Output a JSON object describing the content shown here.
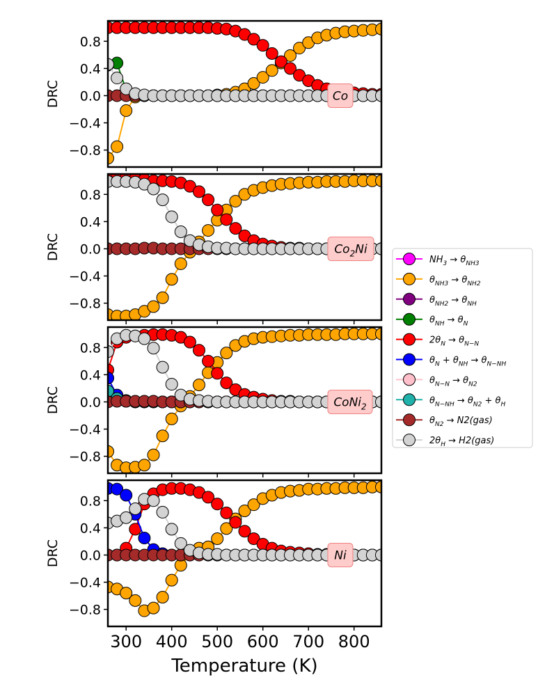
{
  "chart_data": {
    "type": "line",
    "xlabel": "Temperature (K)",
    "ylabel": "DRC",
    "xlim": [
      260,
      860
    ],
    "ylim": [
      -1.05,
      1.1
    ],
    "xticks": [
      300,
      400,
      500,
      600,
      700,
      800
    ],
    "yticks": [
      -0.8,
      -0.4,
      0.0,
      0.4,
      0.8
    ],
    "xtick_labels": [
      "300",
      "400",
      "500",
      "600",
      "700",
      "800"
    ],
    "ytick_labels": [
      "−0.8",
      "−0.4",
      "0.0",
      "0.4",
      "0.8"
    ],
    "legend_placement": "right",
    "x": [
      260,
      280,
      300,
      320,
      340,
      360,
      380,
      400,
      420,
      440,
      460,
      480,
      500,
      520,
      540,
      560,
      580,
      600,
      620,
      640,
      660,
      680,
      700,
      720,
      740,
      760,
      780,
      800,
      820,
      840,
      860
    ],
    "legend": [
      {
        "name": "NH3→θNH3",
        "color": "#ff00ff",
        "main": "NH",
        "sub1": "3",
        "arrow": " → θ",
        "sub2": "NH3"
      },
      {
        "name": "θNH3→θNH2",
        "color": "#ffa500",
        "main": "θ",
        "sub1": "NH3",
        "arrow": " → θ",
        "sub2": "NH2"
      },
      {
        "name": "θNH2→θNH",
        "color": "#800080",
        "main": "θ",
        "sub1": "NH2",
        "arrow": " → θ",
        "sub2": "NH"
      },
      {
        "name": "θNH→θN",
        "color": "#008000",
        "main": "θ",
        "sub1": "NH",
        "arrow": " → θ",
        "sub2": "N"
      },
      {
        "name": "2θN→θN−N",
        "color": "#ff0000",
        "main": "2θ",
        "sub1": "N",
        "arrow": " → θ",
        "sub2": "N−N"
      },
      {
        "name": "θN+θNH→θN−NH",
        "color": "#0000ff",
        "main": "θ",
        "sub1": "N",
        "arrow": " + θ",
        "sub2": "NH",
        "arrow2": " → θ",
        "sub3": "N−NH"
      },
      {
        "name": "θN−N→θN2",
        "color": "#ffc0cb",
        "main": "θ",
        "sub1": "N−N",
        "arrow": " → θ",
        "sub2": "N2"
      },
      {
        "name": "θN−NH→θN2+θH",
        "color": "#20b2aa",
        "main": "θ",
        "sub1": "N−NH",
        "arrow": " → θ",
        "sub2": "N2",
        "arrow2": " + θ",
        "sub3": "H"
      },
      {
        "name": "θN2→N2(gas)",
        "color": "#a52a2a",
        "main": "θ",
        "sub1": "N2",
        "arrow": " → N2(gas)",
        "sub2": ""
      },
      {
        "name": "2θH→H2(gas)",
        "color": "#d3d3d3",
        "main": "2θ",
        "sub1": "H",
        "arrow": " → H2(gas)",
        "sub2": ""
      }
    ],
    "panels": [
      {
        "label_main": "Co",
        "label_sub": "",
        "series": [
          {
            "name": "θNH3→θNH2",
            "color": "#ffa500",
            "values": [
              -0.92,
              -0.75,
              -0.22,
              -0.02,
              0.0,
              0.0,
              0.0,
              0.0,
              0.0,
              0.0,
              0.0,
              0.0,
              0.01,
              0.02,
              0.05,
              0.1,
              0.18,
              0.27,
              0.37,
              0.48,
              0.59,
              0.7,
              0.78,
              0.85,
              0.89,
              0.92,
              0.94,
              0.95,
              0.96,
              0.97,
              0.98
            ]
          },
          {
            "name": "2θN→θN−N",
            "color": "#ff0000",
            "values": [
              1.0,
              1.0,
              1.0,
              1.0,
              1.0,
              1.0,
              1.0,
              1.0,
              1.0,
              1.0,
              1.0,
              1.0,
              0.99,
              0.98,
              0.95,
              0.9,
              0.83,
              0.74,
              0.62,
              0.5,
              0.4,
              0.3,
              0.22,
              0.15,
              0.1,
              0.07,
              0.05,
              0.04,
              0.03,
              0.02,
              0.02
            ]
          },
          {
            "name": "θNH→θN",
            "color": "#008000",
            "values": [
              0.45,
              0.48,
              0.08,
              0.01,
              0.0,
              0.0,
              0.0,
              0.0,
              0.0,
              0.0,
              0.0,
              0.0,
              0.0,
              0.0,
              0.0,
              0.0,
              0.0,
              0.0,
              0.0,
              0.0,
              0.0,
              0.0,
              0.0,
              0.0,
              0.0,
              0.0,
              0.0,
              0.0,
              0.0,
              0.0,
              0.0
            ]
          },
          {
            "name": "θN2→N2(gas)",
            "color": "#a52a2a",
            "values": [
              0.0,
              0.0,
              0.0,
              0.0,
              0.0,
              0.0,
              0.0,
              0.0,
              0.0,
              0.0,
              0.0,
              0.0,
              0.0,
              0.0,
              0.0,
              0.0,
              0.0,
              0.0,
              0.0,
              0.0,
              0.0,
              0.0,
              0.0,
              0.0,
              0.0,
              0.0,
              0.0,
              0.0,
              0.0,
              0.0,
              0.0
            ]
          },
          {
            "name": "2θH→H2(gas)",
            "color": "#d3d3d3",
            "values": [
              0.46,
              0.26,
              0.1,
              0.03,
              0.01,
              0.0,
              0.0,
              0.0,
              0.0,
              0.0,
              0.0,
              0.0,
              0.0,
              0.0,
              0.0,
              0.0,
              0.0,
              0.0,
              0.0,
              0.0,
              0.0,
              0.0,
              0.0,
              0.0,
              0.0,
              0.0,
              0.0,
              0.0,
              0.0,
              0.0,
              0.0
            ]
          }
        ]
      },
      {
        "label_main": "Co",
        "label_sub": "2",
        "label_tail": "Ni",
        "series": [
          {
            "name": "θNH3→θNH2",
            "color": "#ffa500",
            "values": [
              -0.97,
              -0.99,
              -0.99,
              -0.97,
              -0.92,
              -0.85,
              -0.72,
              -0.45,
              -0.22,
              -0.05,
              0.1,
              0.27,
              0.42,
              0.57,
              0.7,
              0.8,
              0.86,
              0.9,
              0.93,
              0.95,
              0.96,
              0.97,
              0.98,
              0.98,
              0.99,
              0.99,
              0.99,
              1.0,
              1.0,
              1.0,
              1.0
            ]
          },
          {
            "name": "2θN→θN−N",
            "color": "#ff0000",
            "values": [
              1.1,
              1.1,
              1.05,
              1.03,
              1.02,
              1.0,
              1.0,
              0.99,
              0.97,
              0.92,
              0.84,
              0.72,
              0.57,
              0.43,
              0.3,
              0.19,
              0.12,
              0.07,
              0.04,
              0.02,
              0.01,
              0.01,
              0.0,
              0.0,
              0.0,
              0.0,
              0.0,
              0.0,
              0.0,
              0.0,
              0.0
            ]
          },
          {
            "name": "θN2→N2(gas)",
            "color": "#a52a2a",
            "values": [
              0.0,
              0.0,
              0.0,
              0.0,
              0.01,
              0.01,
              0.0,
              0.0,
              0.0,
              0.0,
              0.0,
              0.0,
              0.0,
              0.0,
              0.0,
              0.0,
              0.0,
              0.0,
              0.0,
              0.0,
              0.0,
              0.0,
              0.0,
              0.0,
              0.0,
              0.0,
              0.0,
              0.0,
              0.0,
              0.0,
              0.0
            ]
          },
          {
            "name": "2θH→H2(gas)",
            "color": "#d3d3d3",
            "values": [
              0.99,
              0.99,
              0.99,
              0.98,
              0.95,
              0.88,
              0.72,
              0.47,
              0.25,
              0.12,
              0.06,
              0.03,
              0.01,
              0.01,
              0.0,
              0.0,
              0.0,
              0.0,
              0.0,
              0.0,
              0.0,
              0.0,
              0.0,
              0.0,
              0.0,
              0.0,
              0.0,
              0.0,
              0.0,
              0.0,
              0.0
            ]
          }
        ]
      },
      {
        "label_main": "CoNi",
        "label_sub": "2",
        "label_tail": "",
        "series": [
          {
            "name": "θNH3→θNH2",
            "color": "#ffa500",
            "values": [
              -0.73,
              -0.93,
              -0.97,
              -0.96,
              -0.93,
              -0.78,
              -0.5,
              -0.25,
              -0.06,
              0.08,
              0.25,
              0.43,
              0.58,
              0.72,
              0.83,
              0.89,
              0.93,
              0.95,
              0.96,
              0.97,
              0.98,
              0.98,
              0.99,
              0.99,
              0.99,
              0.99,
              1.0,
              1.0,
              1.0,
              1.0,
              1.0
            ]
          },
          {
            "name": "2θN→θN−N",
            "color": "#ff0000",
            "values": [
              0.47,
              0.88,
              0.95,
              0.97,
              0.98,
              0.99,
              0.99,
              0.98,
              0.95,
              0.88,
              0.76,
              0.6,
              0.42,
              0.28,
              0.18,
              0.11,
              0.07,
              0.04,
              0.02,
              0.01,
              0.01,
              0.0,
              0.0,
              0.0,
              0.0,
              0.0,
              0.0,
              0.0,
              0.0,
              0.0,
              0.0
            ]
          },
          {
            "name": "θN+θNH→θN−NH",
            "color": "#0000ff",
            "values": [
              0.35,
              0.1,
              0.02,
              0.0,
              0.0,
              0.0,
              0.0,
              0.0,
              0.0,
              0.0,
              0.0,
              0.0,
              0.0,
              0.0,
              0.0,
              0.0,
              0.0,
              0.0,
              0.0,
              0.0,
              0.0,
              0.0,
              0.0,
              0.0,
              0.0,
              0.0,
              0.0,
              0.0,
              0.0,
              0.0,
              0.0
            ]
          },
          {
            "name": "θN−NH→θN2+θH",
            "color": "#20b2aa",
            "values": [
              0.16,
              0.05,
              0.01,
              0.0,
              0.0,
              0.0,
              0.0,
              0.0,
              0.0,
              0.0,
              0.0,
              0.0,
              0.0,
              0.0,
              0.0,
              0.0,
              0.0,
              0.0,
              0.0,
              0.0,
              0.0,
              0.0,
              0.0,
              0.0,
              0.0,
              0.0,
              0.0,
              0.0,
              0.0,
              0.0,
              0.0
            ]
          },
          {
            "name": "θN2→N2(gas)",
            "color": "#a52a2a",
            "values": [
              0.0,
              0.01,
              0.01,
              0.01,
              0.01,
              0.01,
              0.0,
              0.0,
              0.0,
              0.0,
              0.0,
              0.0,
              0.0,
              0.0,
              0.0,
              0.0,
              0.0,
              0.0,
              0.0,
              0.0,
              0.0,
              0.0,
              0.0,
              0.0,
              0.0,
              0.0,
              0.0,
              0.0,
              0.0,
              0.0,
              0.0
            ]
          },
          {
            "name": "2θH→H2(gas)",
            "color": "#d3d3d3",
            "values": [
              0.74,
              0.93,
              0.98,
              0.97,
              0.93,
              0.79,
              0.51,
              0.26,
              0.1,
              0.04,
              0.02,
              0.01,
              0.0,
              0.0,
              0.0,
              0.0,
              0.0,
              0.0,
              0.0,
              0.0,
              0.0,
              0.0,
              0.0,
              0.0,
              0.0,
              0.0,
              0.0,
              0.0,
              0.0,
              0.0,
              0.0
            ]
          }
        ]
      },
      {
        "label_main": "Ni",
        "label_sub": "",
        "label_tail": "",
        "series": [
          {
            "name": "θNH3→θNH2",
            "color": "#ffa500",
            "values": [
              -0.47,
              -0.5,
              -0.56,
              -0.67,
              -0.82,
              -0.78,
              -0.62,
              -0.37,
              -0.15,
              0.0,
              0.1,
              0.12,
              0.24,
              0.39,
              0.53,
              0.65,
              0.74,
              0.83,
              0.88,
              0.92,
              0.94,
              0.95,
              0.97,
              0.97,
              0.98,
              0.98,
              0.99,
              0.99,
              0.99,
              1.0,
              1.0
            ]
          },
          {
            "name": "2θN→θN−N",
            "color": "#ff0000",
            "values": [
              0.0,
              0.0,
              0.1,
              0.38,
              0.75,
              0.9,
              0.96,
              0.98,
              0.98,
              0.96,
              0.92,
              0.85,
              0.75,
              0.62,
              0.48,
              0.35,
              0.24,
              0.16,
              0.1,
              0.06,
              0.04,
              0.03,
              0.02,
              0.01,
              0.01,
              0.0,
              0.0,
              0.0,
              0.0,
              0.0,
              0.0
            ]
          },
          {
            "name": "θN+θNH→θN−NH",
            "color": "#0000ff",
            "values": [
              0.98,
              0.97,
              0.88,
              0.6,
              0.25,
              0.08,
              0.02,
              0.0,
              0.0,
              0.0,
              0.0,
              0.0,
              0.0,
              0.0,
              0.0,
              0.0,
              0.0,
              0.0,
              0.0,
              0.0,
              0.0,
              0.0,
              0.0,
              0.0,
              0.0,
              0.0,
              0.0,
              0.0,
              0.0,
              0.0,
              0.0
            ]
          },
          {
            "name": "θN2→N2(gas)",
            "color": "#a52a2a",
            "values": [
              0.0,
              0.0,
              0.0,
              0.0,
              0.0,
              0.0,
              0.0,
              0.0,
              0.0,
              0.0,
              0.0,
              0.0,
              0.0,
              0.0,
              0.0,
              0.0,
              0.0,
              0.0,
              0.0,
              0.0,
              0.0,
              0.0,
              0.0,
              0.0,
              0.0,
              0.0,
              0.0,
              0.0,
              0.0,
              0.0,
              0.0
            ]
          },
          {
            "name": "2θH→H2(gas)",
            "color": "#d3d3d3",
            "values": [
              0.47,
              0.5,
              0.55,
              0.68,
              0.82,
              0.8,
              0.63,
              0.38,
              0.17,
              0.07,
              0.03,
              0.01,
              0.01,
              0.0,
              0.0,
              0.0,
              0.0,
              0.0,
              0.0,
              0.0,
              0.0,
              0.0,
              0.0,
              0.0,
              0.0,
              0.0,
              0.0,
              0.0,
              0.0,
              0.0,
              0.0
            ]
          }
        ]
      }
    ]
  }
}
